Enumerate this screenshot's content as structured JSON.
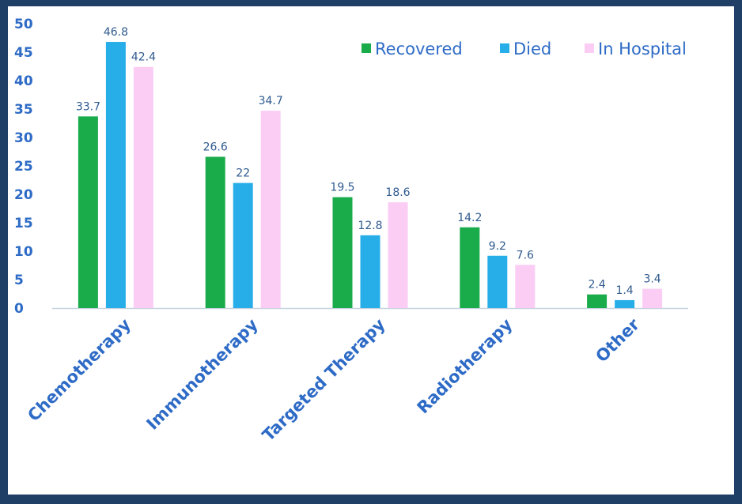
{
  "chart_data": {
    "type": "bar",
    "categories": [
      "Chemotherapy",
      "Immunotherapy",
      "Targeted Therapy",
      "Radiotherapy",
      "Other"
    ],
    "series": [
      {
        "name": "Recovered",
        "color": "#1aab4b",
        "values": [
          33.7,
          26.6,
          19.5,
          14.2,
          2.4
        ]
      },
      {
        "name": "Died",
        "color": "#27aee8",
        "values": [
          46.8,
          22,
          12.8,
          9.2,
          1.4
        ]
      },
      {
        "name": "In Hospital",
        "color": "#fbcdf5",
        "values": [
          42.4,
          34.7,
          18.6,
          7.6,
          3.4
        ]
      }
    ],
    "yticks": [
      0,
      5,
      10,
      15,
      20,
      25,
      30,
      35,
      40,
      45,
      50
    ],
    "ylim": [
      0,
      50
    ],
    "grid": false,
    "legend_position": "top-right",
    "colors": {
      "axis_text": "#2e6bc6",
      "data_label": "#2f5a8e",
      "background": "#1f3f66"
    }
  }
}
